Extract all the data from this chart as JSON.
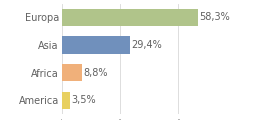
{
  "categories": [
    "America",
    "Africa",
    "Asia",
    "Europa"
  ],
  "values": [
    3.5,
    8.8,
    29.4,
    58.3
  ],
  "labels": [
    "3,5%",
    "8,8%",
    "29,4%",
    "58,3%"
  ],
  "bar_colors": [
    "#e8d060",
    "#f0b07a",
    "#7090bc",
    "#b0c48a"
  ],
  "background_color": "#ffffff",
  "xlim": [
    0,
    72
  ],
  "label_fontsize": 7.0,
  "tick_fontsize": 7.0,
  "grid_color": "#d8d8d8",
  "grid_xticks": [
    0,
    25,
    50
  ],
  "bar_height": 0.62,
  "text_color": "#606060"
}
